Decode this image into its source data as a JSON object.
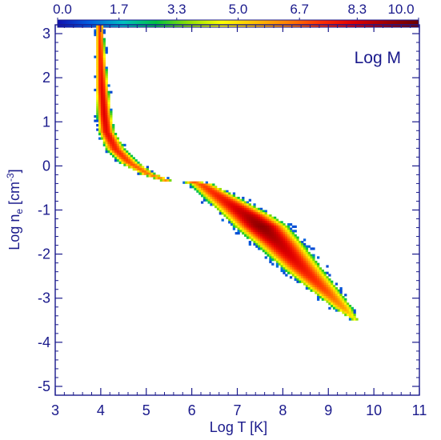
{
  "chart_data": {
    "type": "heatmap",
    "panel_label": "Log M",
    "xlabel": "Log T [K]",
    "ylabel_main": "Log n",
    "ylabel_sub": "e",
    "ylabel_unit": " [cm",
    "ylabel_exp": "-3",
    "ylabel_close": "]",
    "xlim": [
      3,
      11
    ],
    "ylim": [
      -5.2,
      3.2
    ],
    "xticks": [
      3,
      4,
      5,
      6,
      7,
      8,
      9,
      10,
      11
    ],
    "xtick_labels": [
      "3",
      "4",
      "5",
      "6",
      "7",
      "8",
      "9",
      "10",
      "11"
    ],
    "yticks": [
      -5,
      -4,
      -3,
      -2,
      -1,
      0,
      1,
      2,
      3
    ],
    "ytick_labels": [
      "-5",
      "-4",
      "-3",
      "-2",
      "-1",
      "0",
      "1",
      "2",
      "3"
    ],
    "colorbar": {
      "range": [
        0,
        10
      ],
      "ticks": [
        0.0,
        1.7,
        3.3,
        5.0,
        6.7,
        8.3,
        10.0
      ],
      "tick_labels": [
        "0.0",
        "1.7",
        "3.3",
        "5.0",
        "6.7",
        "8.3",
        "10.0"
      ],
      "colors": [
        "#1010b0",
        "#0060e0",
        "#00c0c0",
        "#00c040",
        "#90e000",
        "#ffff00",
        "#ffc000",
        "#ff8000",
        "#ff3000",
        "#e00000",
        "#a00000",
        "#6a0000"
      ]
    },
    "distribution_ridge": [
      {
        "x": 3.95,
        "y": 3.2,
        "half_width": 0.06,
        "peak": 7.0
      },
      {
        "x": 3.97,
        "y": 2.5,
        "half_width": 0.07,
        "peak": 7.5
      },
      {
        "x": 4.0,
        "y": 1.8,
        "half_width": 0.09,
        "peak": 8.0
      },
      {
        "x": 4.05,
        "y": 1.2,
        "half_width": 0.1,
        "peak": 8.2
      },
      {
        "x": 4.1,
        "y": 0.8,
        "half_width": 0.11,
        "peak": 8.0
      },
      {
        "x": 4.3,
        "y": 0.4,
        "half_width": 0.14,
        "peak": 7.5
      },
      {
        "x": 4.6,
        "y": 0.1,
        "half_width": 0.14,
        "peak": 7.0
      },
      {
        "x": 5.0,
        "y": -0.15,
        "half_width": 0.12,
        "peak": 6.5
      },
      {
        "x": 5.4,
        "y": -0.3,
        "half_width": 0.09,
        "peak": 6.2
      },
      {
        "x": 5.7,
        "y": -0.25,
        "half_width": 0.1,
        "peak": 6.4
      },
      {
        "x": 6.2,
        "y": -0.4,
        "half_width": 0.18,
        "peak": 7.0
      },
      {
        "x": 6.7,
        "y": -0.75,
        "half_width": 0.26,
        "peak": 7.8
      },
      {
        "x": 7.2,
        "y": -1.1,
        "half_width": 0.32,
        "peak": 8.8
      },
      {
        "x": 7.5,
        "y": -1.35,
        "half_width": 0.34,
        "peak": 9.4
      },
      {
        "x": 7.9,
        "y": -1.75,
        "half_width": 0.32,
        "peak": 8.6
      },
      {
        "x": 8.4,
        "y": -2.3,
        "half_width": 0.28,
        "peak": 7.8
      },
      {
        "x": 8.9,
        "y": -2.8,
        "half_width": 0.22,
        "peak": 7.0
      },
      {
        "x": 9.3,
        "y": -3.2,
        "half_width": 0.16,
        "peak": 6.0
      },
      {
        "x": 9.55,
        "y": -3.45,
        "half_width": 0.08,
        "peak": 4.5
      }
    ]
  }
}
